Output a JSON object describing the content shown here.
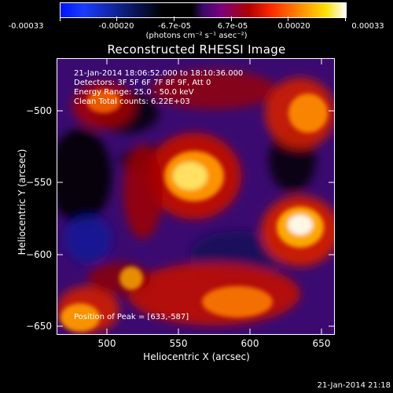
{
  "colorbar": {
    "ticks": [
      "-0.00033",
      "-0.00020",
      "-6.7e-05",
      "6.7e-05",
      "0.00020",
      "0.00033"
    ],
    "unit_text": "(photons cm⁻² s⁻¹ asec⁻²)"
  },
  "plot": {
    "title": "Reconstructed RHESSI Image",
    "xlabel": "Heliocentric X (arcsec)",
    "ylabel": "Heliocentric Y (arcsec)",
    "xticks": [
      "500",
      "550",
      "600",
      "650"
    ],
    "yticks": [
      "−500",
      "−550",
      "−600",
      "−650"
    ]
  },
  "info": {
    "time_range": "21-Jan-2014 18:06:52.000 to 18:10:36.000",
    "detectors": "Detectors: 3F 5F 6F 7F 8F 9F, Att 0",
    "energy": "Energy Range: 25.0 - 50.0 keV",
    "clean": "Clean     Total counts: 6.22E+03",
    "peak": "Position of Peak = [633,-587]"
  },
  "footer": {
    "timestamp": "21-Jan-2014 21:18"
  },
  "colors": {
    "cmap_low": "#0018ff",
    "cmap_mid": "#ff0000",
    "cmap_high": "#ffffff",
    "bg": "#000000"
  }
}
